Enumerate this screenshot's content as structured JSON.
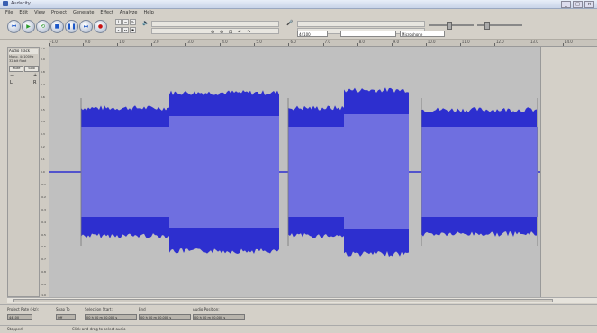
{
  "window": {
    "title": "Audacity",
    "btn_min": "_",
    "btn_max": "□",
    "btn_close": "×"
  },
  "menu": [
    "File",
    "Edit",
    "View",
    "Project",
    "Generate",
    "Effect",
    "Analyze",
    "Help"
  ],
  "transport": [
    {
      "name": "skip-start",
      "glyph": "⏮"
    },
    {
      "name": "play",
      "glyph": "▶"
    },
    {
      "name": "loop",
      "glyph": "⟲"
    },
    {
      "name": "stop",
      "glyph": "■"
    },
    {
      "name": "pause",
      "glyph": "❚❚"
    },
    {
      "name": "skip-end",
      "glyph": "⏭"
    },
    {
      "name": "record",
      "glyph": "●"
    }
  ],
  "toolbar": {
    "rate_select": "44100",
    "device_select": "Microphone",
    "meter_left_icon": "speaker-icon",
    "meter_right_icon": "mic-icon"
  },
  "ruler": {
    "ticks": [
      "-1.0",
      "0.0",
      "1.0",
      "2.0",
      "3.0",
      "4.0",
      "5.0",
      "6.0",
      "7.0",
      "8.0",
      "9.0",
      "10.0",
      "11.0",
      "12.0",
      "13.0",
      "14.0"
    ]
  },
  "track": {
    "name": "Audio Track",
    "info1": "Mono, 44100Hz",
    "info2": "32-bit float",
    "mute": "Mute",
    "solo": "Solo",
    "scale": [
      "1.0",
      "0.9",
      "0.8",
      "0.7",
      "0.6",
      "0.5",
      "0.4",
      "0.3",
      "0.2",
      "0.1",
      "0.0",
      "-0.1",
      "-0.2",
      "-0.3",
      "-0.4",
      "-0.5",
      "-0.6",
      "-0.7",
      "-0.8",
      "-0.9",
      "-1.0"
    ]
  },
  "selection": {
    "project_rate_label": "Project Rate (Hz):",
    "project_rate": "44100",
    "snap_label": "Snap To",
    "snap_value": "Off",
    "start_label": "Selection Start:",
    "start_value": "00 h 00 m 00.000 s",
    "end_label": "End",
    "end_value": "00 h 00 m 00.000 s",
    "audio_label": "Audio Position:",
    "audio_value": "00 h 00 m 00.000 s"
  },
  "status": {
    "left": "Stopped.",
    "right": "Click and drag to select audio"
  },
  "colors": {
    "wave_dark": "#2d2fcf",
    "wave_light": "#6f6fe0",
    "track_bg": "#c0c0c0"
  }
}
